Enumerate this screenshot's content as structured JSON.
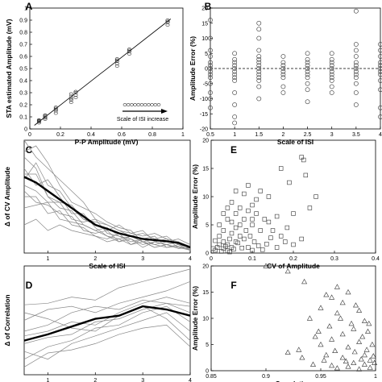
{
  "chart_data": [
    {
      "panel": "A",
      "type": "scatter",
      "xlabel": "P-P Amplitude (mV)",
      "ylabel": "STA estimated Amplitude (mV)",
      "xlim": [
        0,
        1
      ],
      "ylim": [
        0,
        1
      ],
      "xticks": [
        "0",
        "0.2",
        "0.4",
        "0.6",
        "0.8",
        "1"
      ],
      "yticks": [
        "0",
        "0.1",
        "0.2",
        "0.3",
        "0.4",
        "0.5",
        "0.6",
        "0.7",
        "0.8",
        "0.9",
        "1"
      ],
      "fit_line": [
        [
          0.03,
          0.03
        ],
        [
          0.92,
          0.91
        ]
      ],
      "groups": [
        {
          "x": 0.06,
          "y": [
            0.05,
            0.06,
            0.065,
            0.07,
            0.075
          ]
        },
        {
          "x": 0.1,
          "y": [
            0.08,
            0.09,
            0.1,
            0.11,
            0.115
          ]
        },
        {
          "x": 0.17,
          "y": [
            0.13,
            0.15,
            0.16,
            0.17,
            0.18
          ]
        },
        {
          "x": 0.27,
          "y": [
            0.22,
            0.24,
            0.25,
            0.27,
            0.29
          ]
        },
        {
          "x": 0.3,
          "y": [
            0.26,
            0.28,
            0.3,
            0.31
          ]
        },
        {
          "x": 0.57,
          "y": [
            0.52,
            0.54,
            0.56,
            0.57,
            0.58
          ]
        },
        {
          "x": 0.65,
          "y": [
            0.62,
            0.64,
            0.65,
            0.66
          ]
        },
        {
          "x": 0.9,
          "y": [
            0.86,
            0.88,
            0.89,
            0.9
          ]
        }
      ],
      "annotation": "Scale of ISI increase"
    },
    {
      "panel": "B",
      "type": "scatter",
      "xlabel": "Scale of ISI",
      "ylabel": "Amplitude Error (%)",
      "xlim": [
        0.5,
        4
      ],
      "ylim": [
        -20,
        20
      ],
      "xticks": [
        "0.5",
        "1",
        "1.5",
        "2",
        "2.5",
        "3",
        "3.5",
        "4"
      ],
      "yticks": [
        "-20",
        "-15",
        "-10",
        "-5",
        "0",
        "5",
        "10",
        "15",
        "20"
      ],
      "reference_y": 0,
      "groups": [
        {
          "x": 0.5,
          "y": [
            16,
            10,
            6,
            4,
            2,
            1,
            0,
            -1,
            -2,
            -3,
            -5,
            -8,
            -10,
            -13
          ]
        },
        {
          "x": 1,
          "y": [
            5,
            3,
            2,
            1,
            0,
            -1,
            -2,
            -3,
            -4,
            -8,
            -12,
            -16,
            -18
          ]
        },
        {
          "x": 1.5,
          "y": [
            15,
            13,
            10,
            6,
            4,
            3,
            2,
            1,
            0,
            -1,
            -2,
            -3,
            -4,
            -6,
            -10
          ]
        },
        {
          "x": 2,
          "y": [
            4,
            2,
            1,
            0,
            -1,
            -2,
            -3,
            -6,
            -8
          ]
        },
        {
          "x": 2.5,
          "y": [
            5,
            3,
            2,
            1,
            0,
            -1,
            -2,
            -3,
            -5,
            -7,
            -11
          ]
        },
        {
          "x": 3,
          "y": [
            5,
            3,
            2,
            1,
            0,
            -1,
            -2,
            -3,
            -4,
            -6,
            -8
          ]
        },
        {
          "x": 3.5,
          "y": [
            19,
            8,
            6,
            4,
            2,
            1,
            0,
            -1,
            -2,
            -3,
            -5,
            -8,
            -12
          ]
        },
        {
          "x": 4,
          "y": [
            8,
            6,
            4,
            2,
            1,
            0,
            -1,
            -2,
            -4,
            -7,
            -13,
            -16
          ]
        }
      ]
    },
    {
      "panel": "C",
      "type": "line",
      "xlabel": "Scale of ISI",
      "ylabel": "Δ of CV Amplitude",
      "xlim": [
        0.5,
        4
      ],
      "ylim": [
        0,
        0.2
      ],
      "xticks": [
        "1",
        "2",
        "3",
        "4"
      ],
      "x": [
        0.5,
        0.75,
        1,
        1.25,
        1.5,
        1.75,
        2,
        2.25,
        2.5,
        2.75,
        3,
        3.25,
        3.5,
        3.75,
        4
      ],
      "series": [
        {
          "role": "mean",
          "values": [
            0.135,
            0.125,
            0.11,
            0.095,
            0.08,
            0.065,
            0.05,
            0.043,
            0.035,
            0.03,
            0.025,
            0.023,
            0.021,
            0.018,
            0.01
          ]
        },
        {
          "role": "individual",
          "values": [
            0.2,
            0.17,
            0.15,
            0.13,
            0.11,
            0.09,
            0.06,
            0.05,
            0.04,
            0.035,
            0.03,
            0.035,
            0.025,
            0.02,
            0.008
          ]
        },
        {
          "role": "individual",
          "values": [
            0.18,
            0.19,
            0.16,
            0.12,
            0.09,
            0.08,
            0.07,
            0.055,
            0.045,
            0.04,
            0.02,
            0.025,
            0.03,
            0.015,
            0.01
          ]
        },
        {
          "role": "individual",
          "values": [
            0.17,
            0.15,
            0.1,
            0.09,
            0.085,
            0.06,
            0.05,
            0.04,
            0.05,
            0.035,
            0.04,
            0.02,
            0.015,
            0.02,
            0.012
          ]
        },
        {
          "role": "individual",
          "values": [
            0.15,
            0.12,
            0.13,
            0.1,
            0.07,
            0.07,
            0.045,
            0.03,
            0.025,
            0.03,
            0.02,
            0.015,
            0.02,
            0.025,
            0.015
          ]
        },
        {
          "role": "individual",
          "values": [
            0.14,
            0.14,
            0.1,
            0.08,
            0.075,
            0.05,
            0.04,
            0.045,
            0.03,
            0.02,
            0.025,
            0.03,
            0.01,
            0.015,
            0.005
          ]
        },
        {
          "role": "individual",
          "values": [
            0.12,
            0.11,
            0.09,
            0.09,
            0.06,
            0.055,
            0.06,
            0.035,
            0.03,
            0.025,
            0.015,
            0.02,
            0.025,
            0.01,
            0.008
          ]
        },
        {
          "role": "individual",
          "values": [
            0.11,
            0.09,
            0.085,
            0.07,
            0.065,
            0.04,
            0.035,
            0.04,
            0.02,
            0.03,
            0.02,
            0.01,
            0.015,
            0.02,
            0.01
          ]
        },
        {
          "role": "individual",
          "values": [
            0.1,
            0.1,
            0.07,
            0.075,
            0.05,
            0.045,
            0.03,
            0.025,
            0.035,
            0.015,
            0.025,
            0.015,
            0.01,
            0.012,
            0.006
          ]
        },
        {
          "role": "individual",
          "values": [
            0.08,
            0.085,
            0.09,
            0.06,
            0.055,
            0.05,
            0.04,
            0.03,
            0.02,
            0.025,
            0.01,
            0.02,
            0.015,
            0.008,
            0.01
          ]
        },
        {
          "role": "individual",
          "values": [
            0.13,
            0.16,
            0.12,
            0.11,
            0.08,
            0.06,
            0.055,
            0.05,
            0.04,
            0.03,
            0.035,
            0.025,
            0.02,
            0.018,
            0.012
          ]
        },
        {
          "role": "individual",
          "values": [
            0.05,
            0.06,
            0.04,
            0.05,
            0.04,
            0.035,
            0.03,
            0.02,
            0.025,
            0.015,
            0.02,
            0.01,
            0.015,
            0.01,
            0.005
          ]
        }
      ]
    },
    {
      "panel": "D",
      "type": "line",
      "xlabel": "Scale of ISI",
      "ylabel": "Δ of Correlation",
      "xlim": [
        0.5,
        4
      ],
      "ylim": [
        -0.04,
        0.03
      ],
      "xticks": [
        "1",
        "2",
        "3",
        "4"
      ],
      "x": [
        0.5,
        1,
        1.5,
        2,
        2.5,
        3,
        3.5,
        4
      ],
      "series": [
        {
          "role": "mean",
          "values": [
            -0.018,
            -0.014,
            -0.009,
            -0.004,
            -0.002,
            0.004,
            0.002,
            -0.002
          ]
        },
        {
          "role": "individual",
          "values": [
            0.005,
            0.006,
            0.01,
            0.008,
            0.016,
            0.02,
            0.024,
            0.028
          ]
        },
        {
          "role": "individual",
          "values": [
            -0.005,
            0.002,
            0.004,
            0.0,
            0.006,
            0.01,
            0.014,
            0.02
          ]
        },
        {
          "role": "individual",
          "values": [
            -0.012,
            -0.008,
            0.0,
            0.004,
            0.002,
            0.008,
            0.006,
            0.004
          ]
        },
        {
          "role": "individual",
          "values": [
            -0.02,
            -0.016,
            -0.014,
            -0.006,
            -0.004,
            0.002,
            0.006,
            0.0
          ]
        },
        {
          "role": "individual",
          "values": [
            -0.03,
            -0.022,
            -0.018,
            -0.01,
            -0.008,
            0.0,
            0.004,
            -0.006
          ]
        },
        {
          "role": "individual",
          "values": [
            -0.025,
            -0.03,
            -0.02,
            -0.015,
            -0.01,
            -0.005,
            0.0,
            -0.012
          ]
        },
        {
          "role": "individual",
          "values": [
            0.0,
            -0.004,
            -0.01,
            -0.012,
            -0.002,
            0.004,
            -0.004,
            -0.018
          ]
        },
        {
          "role": "individual",
          "values": [
            -0.035,
            -0.026,
            -0.024,
            -0.02,
            -0.014,
            -0.01,
            -0.008,
            -0.022
          ]
        },
        {
          "role": "individual",
          "values": [
            -0.015,
            -0.012,
            -0.006,
            -0.008,
            0.0,
            0.006,
            0.01,
            0.006
          ]
        }
      ]
    },
    {
      "panel": "E",
      "type": "scatter",
      "xlabel": "CV of Amplitude",
      "ylabel": "Amplitude Error (%)",
      "xlim": [
        0,
        0.4
      ],
      "ylim": [
        0,
        20
      ],
      "xticks": [
        "0",
        "0.1",
        "0.2",
        "0.3",
        "0.4"
      ],
      "yticks": [
        "0",
        "5",
        "10",
        "15",
        "20"
      ],
      "marker": "square",
      "points": [
        [
          0.22,
          17
        ],
        [
          0.225,
          16.5
        ],
        [
          0.17,
          15
        ],
        [
          0.19,
          12.5
        ],
        [
          0.23,
          13.8
        ],
        [
          0.255,
          10
        ],
        [
          0.24,
          8
        ],
        [
          0.12,
          11
        ],
        [
          0.14,
          10
        ],
        [
          0.11,
          9.5
        ],
        [
          0.08,
          10.5
        ],
        [
          0.07,
          8
        ],
        [
          0.09,
          7.5
        ],
        [
          0.1,
          8.5
        ],
        [
          0.05,
          9
        ],
        [
          0.06,
          7
        ],
        [
          0.11,
          7
        ],
        [
          0.13,
          6
        ],
        [
          0.14,
          5.5
        ],
        [
          0.16,
          6.5
        ],
        [
          0.15,
          4
        ],
        [
          0.17,
          3
        ],
        [
          0.18,
          2
        ],
        [
          0.2,
          1.5
        ],
        [
          0.22,
          2.5
        ],
        [
          0.12,
          4
        ],
        [
          0.1,
          5
        ],
        [
          0.08,
          6
        ],
        [
          0.07,
          5
        ],
        [
          0.06,
          4.5
        ],
        [
          0.05,
          5.5
        ],
        [
          0.04,
          6
        ],
        [
          0.03,
          4
        ],
        [
          0.02,
          3
        ],
        [
          0.03,
          2
        ],
        [
          0.04,
          1.5
        ],
        [
          0.05,
          1
        ],
        [
          0.06,
          2
        ],
        [
          0.07,
          3
        ],
        [
          0.08,
          2.5
        ],
        [
          0.09,
          1
        ],
        [
          0.1,
          0.5
        ],
        [
          0.01,
          0.5
        ],
        [
          0.015,
          1
        ],
        [
          0.02,
          1.5
        ],
        [
          0.025,
          0.3
        ],
        [
          0.03,
          0.8
        ],
        [
          0.035,
          1.2
        ],
        [
          0.04,
          0.4
        ],
        [
          0.045,
          2.5
        ],
        [
          0.05,
          3.5
        ],
        [
          0.055,
          0.7
        ],
        [
          0.065,
          1.8
        ],
        [
          0.075,
          0.9
        ],
        [
          0.085,
          4
        ],
        [
          0.095,
          3
        ],
        [
          0.105,
          2
        ],
        [
          0.115,
          1.3
        ],
        [
          0.125,
          0.6
        ],
        [
          0.135,
          1.6
        ],
        [
          0.02,
          5
        ],
        [
          0.03,
          7
        ],
        [
          0.04,
          8
        ],
        [
          0.01,
          2.2
        ],
        [
          0.005,
          0.8
        ],
        [
          0.06,
          11
        ],
        [
          0.045,
          0.2
        ],
        [
          0.09,
          12
        ],
        [
          0.1,
          6
        ],
        [
          0.16,
          1
        ],
        [
          0.2,
          7
        ],
        [
          0.185,
          4.5
        ],
        [
          0.145,
          2.7
        ]
      ]
    },
    {
      "panel": "F",
      "type": "scatter",
      "xlabel": "Correlation",
      "ylabel": "Amplitude Error (%)",
      "xlim": [
        0.85,
        1
      ],
      "ylim": [
        0,
        20
      ],
      "xticks": [
        "0.85",
        "0.9",
        "0.95",
        "1"
      ],
      "yticks": [
        "0",
        "5",
        "10",
        "15",
        "20"
      ],
      "marker": "triangle",
      "points": [
        [
          0.9,
          20
        ],
        [
          0.92,
          19
        ],
        [
          0.935,
          17
        ],
        [
          0.965,
          16
        ],
        [
          0.96,
          14
        ],
        [
          0.955,
          14.5
        ],
        [
          0.97,
          13
        ],
        [
          0.975,
          15
        ],
        [
          0.95,
          12
        ],
        [
          0.94,
          10
        ],
        [
          0.965,
          11
        ],
        [
          0.985,
          11.5
        ],
        [
          0.99,
          9.5
        ],
        [
          0.98,
          8
        ],
        [
          0.97,
          7
        ],
        [
          0.96,
          6
        ],
        [
          0.95,
          5
        ],
        [
          0.945,
          6.5
        ],
        [
          0.93,
          4
        ],
        [
          0.92,
          3.5
        ],
        [
          0.955,
          3
        ],
        [
          0.975,
          4.5
        ],
        [
          0.985,
          5.5
        ],
        [
          0.99,
          3
        ],
        [
          0.995,
          2
        ],
        [
          0.98,
          1.5
        ],
        [
          0.97,
          2.5
        ],
        [
          0.96,
          1
        ],
        [
          0.965,
          0.5
        ],
        [
          0.975,
          0.8
        ],
        [
          0.985,
          0.3
        ],
        [
          0.99,
          1.2
        ],
        [
          0.995,
          0.6
        ],
        [
          0.998,
          2.8
        ],
        [
          0.992,
          4
        ],
        [
          0.988,
          6.5
        ],
        [
          0.978,
          9
        ],
        [
          0.968,
          10
        ],
        [
          0.958,
          8.5
        ],
        [
          0.948,
          7.5
        ],
        [
          0.982,
          12.5
        ],
        [
          0.993,
          7.5
        ],
        [
          0.997,
          5
        ],
        [
          0.999,
          1.5
        ],
        [
          0.987,
          2.2
        ],
        [
          0.973,
          1.8
        ],
        [
          0.963,
          3.8
        ],
        [
          0.953,
          2
        ],
        [
          0.943,
          1.2
        ],
        [
          0.933,
          2.5
        ],
        [
          0.981,
          3.6
        ],
        [
          0.994,
          9
        ]
      ]
    }
  ]
}
